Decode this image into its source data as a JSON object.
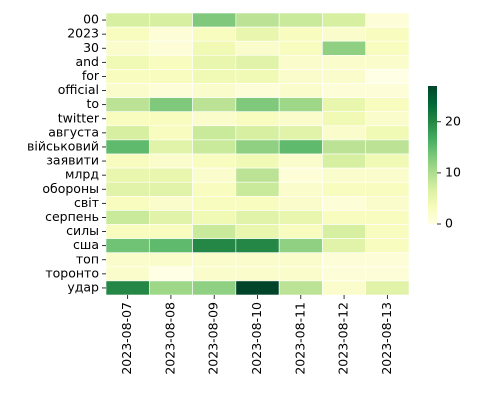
{
  "chart_data": {
    "type": "heatmap",
    "x": [
      "2023-08-07",
      "2023-08-08",
      "2023-08-09",
      "2023-08-10",
      "2023-08-11",
      "2023-08-12",
      "2023-08-13"
    ],
    "y": [
      "00",
      "2023",
      "30",
      "and",
      "for",
      "official",
      "to",
      "twitter",
      "августа",
      "військовий",
      "заявити",
      "млрд",
      "обороны",
      "світ",
      "серпень",
      "силы",
      "сша",
      "топ",
      "торонто",
      "удар"
    ],
    "values": [
      [
        7,
        7,
        13,
        9,
        8,
        7,
        1
      ],
      [
        3,
        1,
        3,
        5,
        3,
        2,
        3
      ],
      [
        2,
        1,
        4,
        2,
        3,
        12,
        3
      ],
      [
        4,
        3,
        5,
        6,
        2,
        2,
        2
      ],
      [
        3,
        3,
        4,
        4,
        2,
        2,
        0
      ],
      [
        2,
        1,
        2,
        1,
        2,
        1,
        1
      ],
      [
        9,
        13,
        9,
        13,
        11,
        5,
        3
      ],
      [
        3,
        3,
        2,
        3,
        2,
        4,
        2
      ],
      [
        7,
        3,
        8,
        7,
        6,
        2,
        4
      ],
      [
        15,
        6,
        8,
        12,
        15,
        9,
        9
      ],
      [
        3,
        2,
        3,
        4,
        2,
        7,
        4
      ],
      [
        5,
        5,
        2,
        9,
        1,
        2,
        2
      ],
      [
        6,
        6,
        3,
        8,
        2,
        3,
        3
      ],
      [
        3,
        2,
        3,
        3,
        2,
        1,
        2
      ],
      [
        8,
        6,
        4,
        6,
        5,
        3,
        3
      ],
      [
        3,
        3,
        8,
        5,
        3,
        7,
        3
      ],
      [
        14,
        15,
        20,
        20,
        12,
        6,
        3
      ],
      [
        2,
        2,
        2,
        2,
        2,
        1,
        1
      ],
      [
        2,
        0,
        2,
        2,
        2,
        1,
        1
      ],
      [
        20,
        11,
        12,
        27,
        9,
        2,
        6
      ]
    ],
    "colorbar": {
      "min": 0,
      "max": 27,
      "ticks": [
        0,
        10,
        20
      ]
    },
    "colormap": "YlGn",
    "cell_border_color": "#ffffff",
    "title": "",
    "xlabel": "",
    "ylabel": ""
  }
}
